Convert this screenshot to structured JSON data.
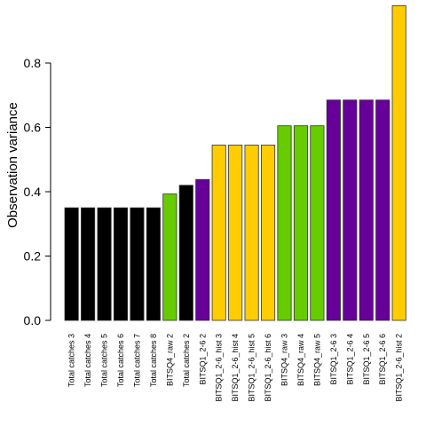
{
  "chart_data": {
    "type": "bar",
    "title": "",
    "xlabel": "",
    "ylabel": "Observation variance",
    "ylim": [
      0,
      0.98
    ],
    "yticks": [
      0.0,
      0.2,
      0.4,
      0.6,
      0.8
    ],
    "ytick_labels": [
      "0.0",
      "0.2",
      "0.4",
      "0.6",
      "0.8"
    ],
    "grid": false,
    "legend": "none",
    "categories": [
      "Total catches 3",
      "Total catches 4",
      "Total catches 5",
      "Total catches 6",
      "Total catches 7",
      "Total catches 8",
      "BITSQ4_raw 2",
      "Total catches 2",
      "BITSQ1_2-6 2",
      "BITSQ1_2-6_hist 3",
      "BITSQ1_2-6_hist 4",
      "BITSQ1_2-6_hist 5",
      "BITSQ1_2-6_hist 6",
      "BITSQ4_raw 3",
      "BITSQ4_raw 4",
      "BITSQ4_raw 5",
      "BITSQ1_2-6 3",
      "BITSQ1_2-6 4",
      "BITSQ1_2-6 5",
      "BITSQ1_2-6 6",
      "BITSQ1_2-6_hist 2"
    ],
    "values": [
      0.35,
      0.35,
      0.35,
      0.35,
      0.35,
      0.35,
      0.393,
      0.42,
      0.438,
      0.545,
      0.545,
      0.545,
      0.545,
      0.605,
      0.605,
      0.605,
      0.685,
      0.685,
      0.685,
      0.685,
      0.978
    ],
    "bar_colors": [
      "#000000",
      "#000000",
      "#000000",
      "#000000",
      "#000000",
      "#000000",
      "#66cc00",
      "#000000",
      "#660099",
      "#ffcc00",
      "#ffcc00",
      "#ffcc00",
      "#ffcc00",
      "#66cc00",
      "#66cc00",
      "#66cc00",
      "#660099",
      "#660099",
      "#660099",
      "#660099",
      "#ffcc00"
    ]
  }
}
